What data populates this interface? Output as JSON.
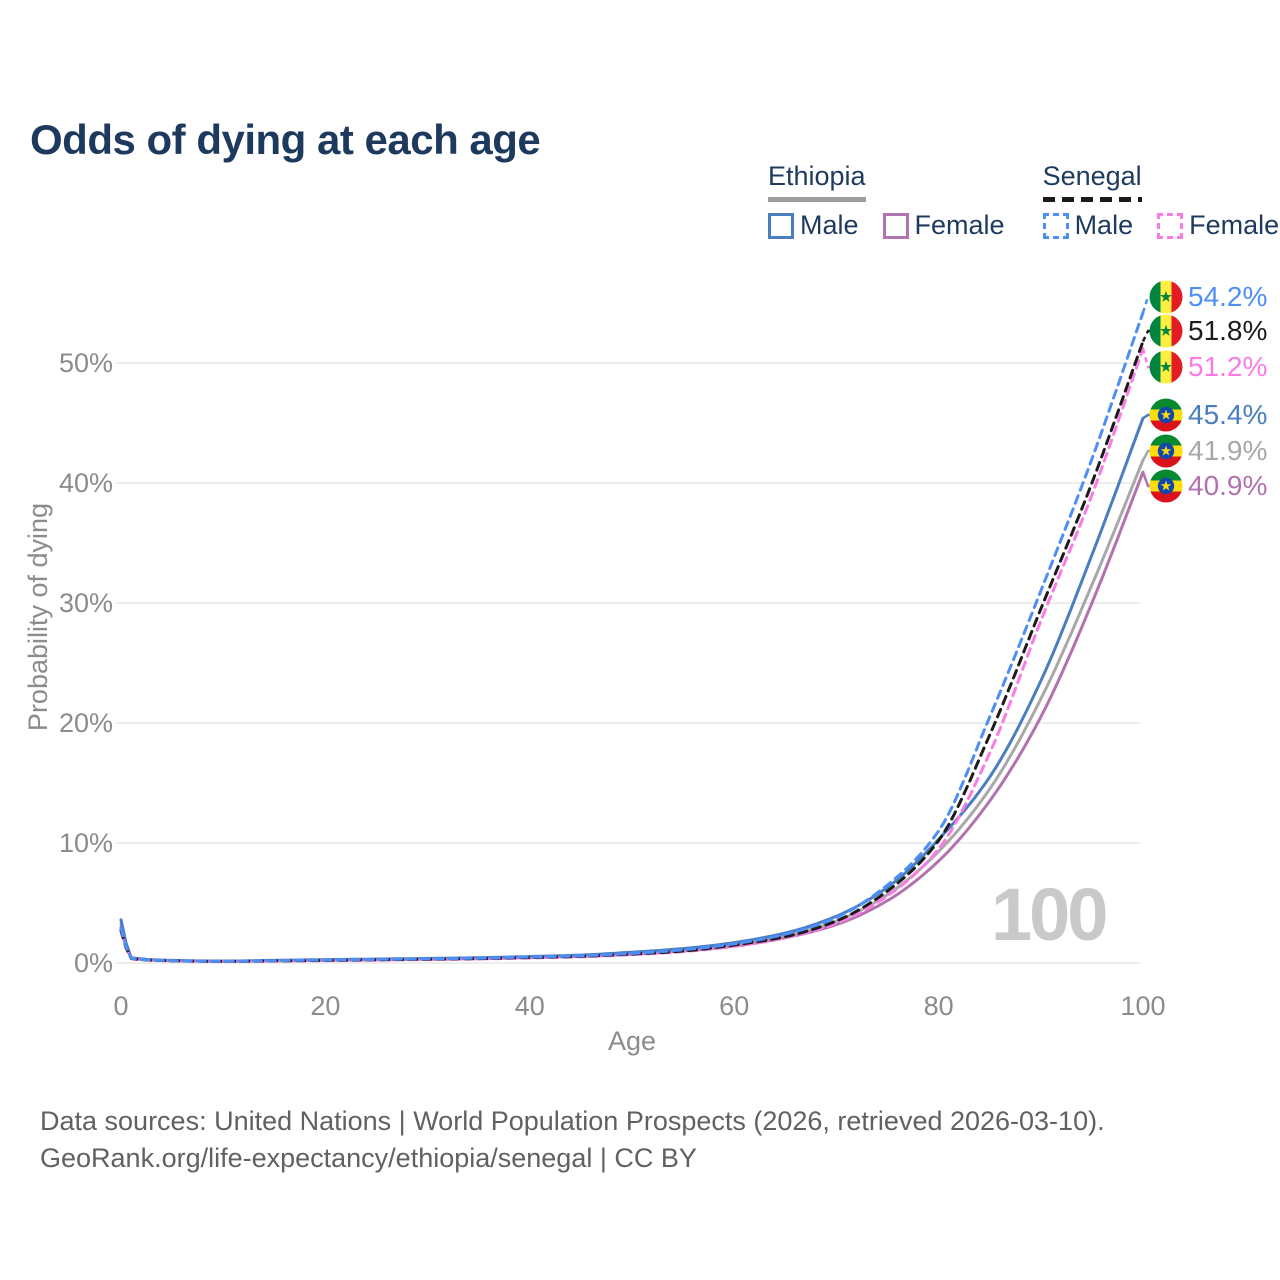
{
  "title": "Odds of dying at each age",
  "legend": {
    "groups": [
      {
        "id": "ethiopia",
        "label": "Ethiopia",
        "underline_color": "#9e9e9e",
        "underline_style": "solid",
        "items": [
          {
            "label": "Male",
            "color": "#4a7ec0",
            "dashed": false
          },
          {
            "label": "Female",
            "color": "#b173ae",
            "dashed": false
          }
        ]
      },
      {
        "id": "senegal",
        "label": "Senegal",
        "underline_color": "#1a1a1a",
        "underline_style": "dashed",
        "items": [
          {
            "label": "Male",
            "color": "#4d8ef7",
            "dashed": true
          },
          {
            "label": "Female",
            "color": "#fb7be5",
            "dashed": true
          }
        ]
      }
    ]
  },
  "chart_data": {
    "type": "line",
    "title": "Odds of dying at each age",
    "xlabel": "Age",
    "ylabel": "Probability of dying",
    "xlim": [
      0,
      100
    ],
    "ylim_percent": [
      0,
      55
    ],
    "x_ticks": [
      "0",
      "20",
      "40",
      "60",
      "80",
      "100"
    ],
    "x_tick_values": [
      0,
      20,
      40,
      60,
      80,
      100
    ],
    "y_ticks": [
      "0%",
      "10%",
      "20%",
      "30%",
      "40%",
      "50%"
    ],
    "y_tick_values": [
      0,
      10,
      20,
      30,
      40,
      50
    ],
    "grid": "horizontal-only",
    "legend_position": "top-right",
    "watermark": "100",
    "ages": [
      0,
      1,
      5,
      10,
      15,
      20,
      25,
      30,
      35,
      40,
      45,
      50,
      55,
      60,
      65,
      70,
      75,
      80,
      85,
      90,
      95,
      100
    ],
    "series": [
      {
        "name": "Senegal Male",
        "country": "Senegal",
        "sex": "Male",
        "color": "#4d8ef7",
        "dashed": true,
        "flag": "senegal",
        "end_label": "54.2%",
        "values": [
          2.9,
          0.4,
          0.2,
          0.15,
          0.2,
          0.25,
          0.3,
          0.35,
          0.4,
          0.5,
          0.6,
          0.8,
          1.1,
          1.6,
          2.4,
          3.8,
          6.5,
          11.0,
          20.5,
          31.0,
          42.0,
          54.2
        ]
      },
      {
        "name": "Senegal (both sexes)",
        "country": "Senegal",
        "sex": "Both",
        "color": "#1c1c1c",
        "dashed": true,
        "flag": "senegal",
        "end_label": "51.8%",
        "values": [
          2.75,
          0.38,
          0.19,
          0.14,
          0.18,
          0.22,
          0.27,
          0.32,
          0.37,
          0.46,
          0.56,
          0.75,
          1.0,
          1.5,
          2.2,
          3.5,
          6.0,
          10.2,
          19.0,
          29.5,
          40.0,
          51.8
        ]
      },
      {
        "name": "Senegal Female",
        "country": "Senegal",
        "sex": "Female",
        "color": "#fb7be5",
        "dashed": true,
        "flag": "senegal",
        "end_label": "51.2%",
        "values": [
          2.6,
          0.36,
          0.18,
          0.13,
          0.16,
          0.2,
          0.24,
          0.29,
          0.34,
          0.42,
          0.52,
          0.7,
          0.95,
          1.4,
          2.1,
          3.3,
          5.6,
          9.5,
          17.5,
          28.5,
          39.0,
          51.2
        ]
      },
      {
        "name": "Ethiopia Male",
        "country": "Ethiopia",
        "sex": "Male",
        "color": "#4a7ec0",
        "dashed": false,
        "flag": "ethiopia",
        "end_label": "45.4%",
        "values": [
          3.6,
          0.45,
          0.22,
          0.16,
          0.22,
          0.28,
          0.33,
          0.38,
          0.44,
          0.54,
          0.66,
          0.9,
          1.2,
          1.7,
          2.5,
          3.9,
          6.3,
          10.3,
          15.5,
          23.5,
          34.0,
          45.4
        ]
      },
      {
        "name": "Ethiopia (both sexes)",
        "country": "Ethiopia",
        "sex": "Both",
        "color": "#a8a8a8",
        "dashed": false,
        "flag": "ethiopia",
        "end_label": "41.9%",
        "values": [
          3.3,
          0.42,
          0.2,
          0.15,
          0.2,
          0.25,
          0.3,
          0.35,
          0.4,
          0.5,
          0.6,
          0.8,
          1.1,
          1.55,
          2.3,
          3.5,
          5.7,
          9.3,
          14.5,
          22.0,
          31.5,
          41.9
        ]
      },
      {
        "name": "Ethiopia Female",
        "country": "Ethiopia",
        "sex": "Female",
        "color": "#b173ae",
        "dashed": false,
        "flag": "ethiopia",
        "end_label": "40.9%",
        "values": [
          3.0,
          0.4,
          0.19,
          0.14,
          0.18,
          0.22,
          0.26,
          0.31,
          0.36,
          0.45,
          0.55,
          0.72,
          1.0,
          1.4,
          2.1,
          3.2,
          5.2,
          8.5,
          13.5,
          20.5,
          30.0,
          40.9
        ]
      }
    ],
    "flag_colors": {
      "senegal": {
        "green": "#00853F",
        "yellow": "#FDEF42",
        "red": "#E31B23",
        "star": "#00853F"
      },
      "ethiopia": {
        "green": "#078930",
        "yellow": "#FCDD09",
        "red": "#DA121A",
        "disc": "#0F47AF",
        "star": "#FCDD09"
      }
    },
    "axis_text_color": "#8c8c8c",
    "grid_color": "#e7e7e7"
  },
  "footer": {
    "line1": "Data sources: United Nations | World Population Prospects (2026, retrieved 2026-03-10).",
    "line2": "GeoRank.org/life-expectancy/ethiopia/senegal | CC BY"
  }
}
